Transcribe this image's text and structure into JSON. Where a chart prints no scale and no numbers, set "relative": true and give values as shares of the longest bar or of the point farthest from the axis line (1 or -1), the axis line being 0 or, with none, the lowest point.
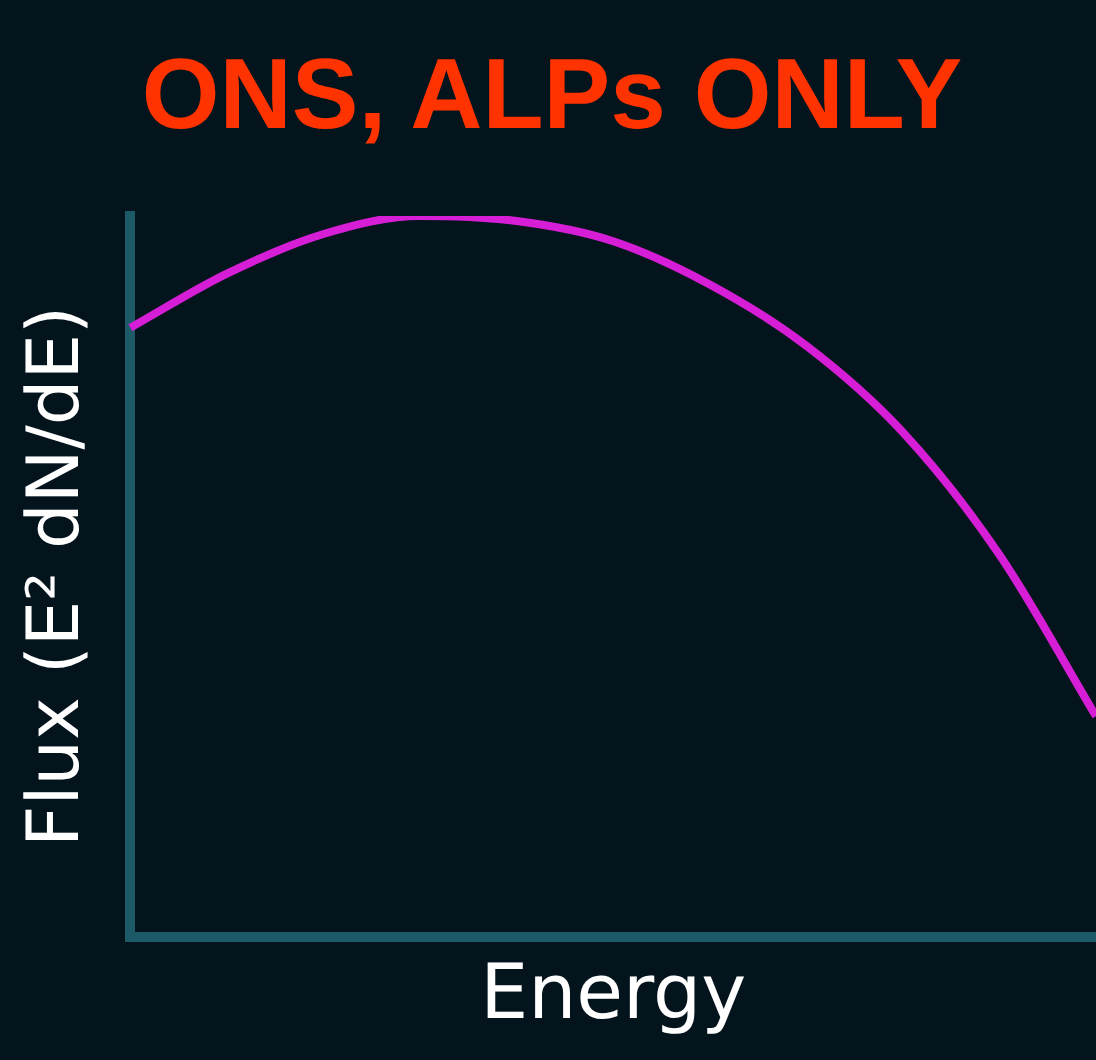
{
  "chart_data": {
    "type": "line",
    "title": "ONS, ALPs ONLY",
    "ylabel": "Flux (E² dN/dE)",
    "xlabel": "Energy",
    "relative": true,
    "categories": [
      null,
      null,
      null,
      null,
      null,
      null,
      null,
      null,
      null,
      null,
      null
    ],
    "series": [
      {
        "color": "#d61ed6",
        "values": [
          0.845,
          0.92,
          0.975,
          1.0,
          0.993,
          0.965,
          0.905,
          0.82,
          0.7,
          0.53,
          0.306
        ]
      }
    ],
    "tick_labels": false,
    "grid": false,
    "legend": false,
    "marker": "none"
  }
}
